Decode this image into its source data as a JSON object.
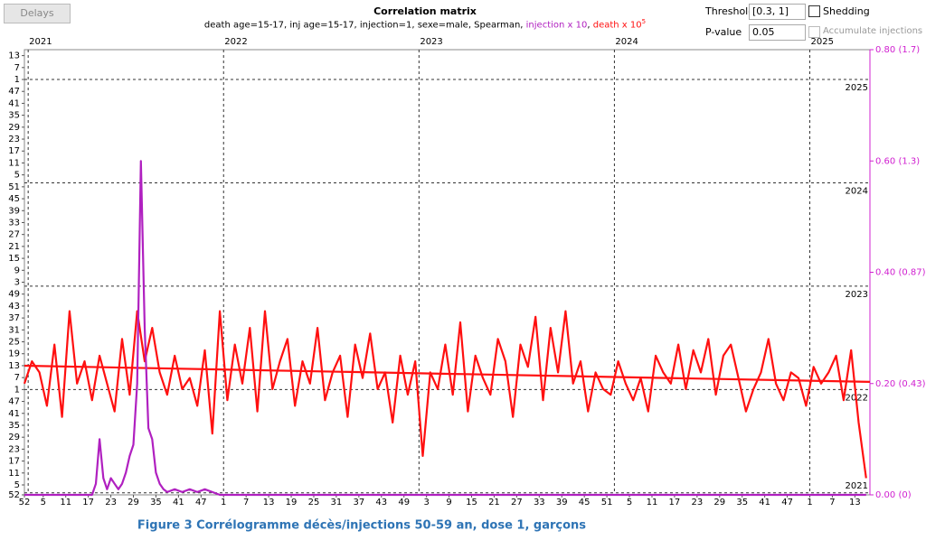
{
  "toolbar": {
    "delays": "Delays",
    "threshold_label": "Threshold",
    "threshold_value": "[0.3, 1]",
    "shedding": "Shedding",
    "pvalue_label": "P-value",
    "pvalue_value": "0.05",
    "accumulate": "Accumulate injections"
  },
  "caption": "Figure 3 Corrélogramme décès/injections 50-59 an, dose 1, garçons",
  "chart_data": {
    "type": "line",
    "title": "Correlation matrix",
    "subtitle": {
      "params": "death age=15-17, inj age=15-17, injection=1, sexe=male, Spearman, ",
      "injection": "injection x 10",
      "sep": ", ",
      "death": "death x 10",
      "death_exp": "5"
    },
    "xlim": [
      0,
      225
    ],
    "xticks": [
      {
        "value": 0,
        "label": "52"
      },
      5,
      11,
      17,
      23,
      29,
      35,
      41,
      47,
      {
        "value": 53,
        "label": "1"
      },
      {
        "value": 59,
        "label": "7"
      },
      {
        "value": 65,
        "label": "13"
      },
      {
        "value": 71,
        "label": "19"
      },
      {
        "value": 77,
        "label": "25"
      },
      {
        "value": 83,
        "label": "31"
      },
      {
        "value": 89,
        "label": "37"
      },
      {
        "value": 95,
        "label": "43"
      },
      {
        "value": 101,
        "label": "49"
      },
      {
        "value": 107,
        "label": "3"
      },
      {
        "value": 113,
        "label": "9"
      },
      {
        "value": 119,
        "label": "15"
      },
      {
        "value": 125,
        "label": "21"
      },
      {
        "value": 131,
        "label": "27"
      },
      {
        "value": 137,
        "label": "33"
      },
      {
        "value": 143,
        "label": "39"
      },
      {
        "value": 149,
        "label": "45"
      },
      {
        "value": 155,
        "label": "51"
      },
      {
        "value": 161,
        "label": "5"
      },
      {
        "value": 167,
        "label": "11"
      },
      {
        "value": 173,
        "label": "17"
      },
      {
        "value": 179,
        "label": "23"
      },
      {
        "value": 185,
        "label": "29"
      },
      {
        "value": 191,
        "label": "35"
      },
      {
        "value": 197,
        "label": "41"
      },
      {
        "value": 203,
        "label": "47"
      },
      {
        "value": 209,
        "label": "1"
      },
      {
        "value": 215,
        "label": "7"
      },
      {
        "value": 221,
        "label": "13"
      }
    ],
    "x2ticks": [
      {
        "value": 1,
        "label": "2021"
      },
      {
        "value": 53,
        "label": "2022"
      },
      {
        "value": 105,
        "label": "2023"
      },
      {
        "value": 157,
        "label": "2024"
      },
      {
        "value": 209,
        "label": "2025"
      }
    ],
    "ylim": [
      0,
      224
    ],
    "yticks": [
      {
        "value": 0,
        "label": "52"
      },
      5,
      11,
      17,
      23,
      29,
      35,
      41,
      47,
      {
        "value": 53,
        "label": "1"
      },
      {
        "value": 59,
        "label": "7"
      },
      {
        "value": 65,
        "label": "13"
      },
      {
        "value": 71,
        "label": "19"
      },
      {
        "value": 77,
        "label": "25"
      },
      {
        "value": 83,
        "label": "31"
      },
      {
        "value": 89,
        "label": "37"
      },
      {
        "value": 95,
        "label": "43"
      },
      {
        "value": 101,
        "label": "49"
      },
      {
        "value": 107,
        "label": "3"
      },
      {
        "value": 113,
        "label": "9"
      },
      {
        "value": 119,
        "label": "15"
      },
      {
        "value": 125,
        "label": "21"
      },
      {
        "value": 131,
        "label": "27"
      },
      {
        "value": 137,
        "label": "33"
      },
      {
        "value": 143,
        "label": "39"
      },
      {
        "value": 149,
        "label": "45"
      },
      {
        "value": 155,
        "label": "51"
      },
      {
        "value": 161,
        "label": "5"
      },
      {
        "value": 167,
        "label": "11"
      },
      {
        "value": 173,
        "label": "17"
      },
      {
        "value": 179,
        "label": "23"
      },
      {
        "value": 185,
        "label": "29"
      },
      {
        "value": 191,
        "label": "35"
      },
      {
        "value": 197,
        "label": "41"
      },
      {
        "value": 203,
        "label": "47"
      },
      {
        "value": 209,
        "label": "1"
      },
      {
        "value": 215,
        "label": "7"
      },
      {
        "value": 221,
        "label": "13"
      }
    ],
    "yyears": [
      {
        "value": 209,
        "label": "2025"
      },
      {
        "value": 157,
        "label": "2024"
      },
      {
        "value": 105,
        "label": "2023"
      },
      {
        "value": 53,
        "label": "2022"
      },
      {
        "value": 1,
        "label": "2021"
      }
    ],
    "y2lim": [
      0,
      0.8
    ],
    "y2ticks": [
      {
        "value": 0,
        "label": "0.00 (0)"
      },
      {
        "value": 0.2,
        "label": "0.20 (0.43)"
      },
      {
        "value": 0.4,
        "label": "0.40 (0.87)"
      },
      {
        "value": 0.6,
        "label": "0.60 (1.3)"
      },
      {
        "value": 0.8,
        "label": "0.80 (1.7)"
      }
    ],
    "series": [
      {
        "color": "#ff1010",
        "axis": "y2",
        "x": [
          0,
          2,
          4,
          6,
          8,
          10,
          12,
          14,
          16,
          18,
          20,
          22,
          24,
          26,
          28,
          30,
          32,
          34,
          36,
          38,
          40,
          42,
          44,
          46,
          48,
          50,
          52,
          54,
          56,
          58,
          60,
          62,
          64,
          66,
          68,
          70,
          72,
          74,
          76,
          78,
          80,
          82,
          84,
          86,
          88,
          90,
          92,
          94,
          96,
          98,
          100,
          102,
          104,
          106,
          108,
          110,
          112,
          114,
          116,
          118,
          120,
          122,
          124,
          126,
          128,
          130,
          132,
          134,
          136,
          138,
          140,
          142,
          144,
          146,
          148,
          150,
          152,
          154,
          156,
          158,
          160,
          162,
          164,
          166,
          168,
          170,
          172,
          174,
          176,
          178,
          180,
          182,
          184,
          186,
          188,
          190,
          192,
          194,
          196,
          198,
          200,
          202,
          204,
          206,
          208,
          210,
          212,
          214,
          216,
          218,
          220,
          222,
          224
        ],
        "values": [
          0.2,
          0.24,
          0.22,
          0.16,
          0.27,
          0.14,
          0.33,
          0.2,
          0.24,
          0.17,
          0.25,
          0.2,
          0.15,
          0.28,
          0.18,
          0.33,
          0.24,
          0.3,
          0.22,
          0.18,
          0.25,
          0.19,
          0.21,
          0.16,
          0.26,
          0.11,
          0.33,
          0.17,
          0.27,
          0.2,
          0.3,
          0.15,
          0.33,
          0.19,
          0.24,
          0.28,
          0.16,
          0.24,
          0.2,
          0.3,
          0.17,
          0.22,
          0.25,
          0.14,
          0.27,
          0.21,
          0.29,
          0.19,
          0.22,
          0.13,
          0.25,
          0.18,
          0.24,
          0.07,
          0.22,
          0.19,
          0.27,
          0.18,
          0.31,
          0.15,
          0.25,
          0.21,
          0.18,
          0.28,
          0.24,
          0.14,
          0.27,
          0.23,
          0.32,
          0.17,
          0.3,
          0.22,
          0.33,
          0.2,
          0.24,
          0.15,
          0.22,
          0.19,
          0.18,
          0.24,
          0.2,
          0.17,
          0.21,
          0.15,
          0.25,
          0.22,
          0.2,
          0.27,
          0.19,
          0.26,
          0.22,
          0.28,
          0.18,
          0.25,
          0.27,
          0.21,
          0.15,
          0.19,
          0.22,
          0.28,
          0.2,
          0.17,
          0.22,
          0.21,
          0.16,
          0.23,
          0.2,
          0.22,
          0.25,
          0.17,
          0.26,
          0.13,
          0.03
        ]
      },
      {
        "color": "#ff1010",
        "axis": "y2",
        "x": [
          0,
          225
        ],
        "values": [
          0.232,
          0.203
        ]
      },
      {
        "color": "#b020c0",
        "axis": "y2",
        "x": [
          0,
          10,
          18,
          19,
          20,
          21,
          22,
          23,
          24,
          25,
          26,
          27,
          28,
          29,
          30,
          31,
          32,
          33,
          34,
          35,
          36,
          37,
          38,
          40,
          42,
          44,
          46,
          48,
          50,
          52,
          60,
          224
        ],
        "values": [
          0,
          0,
          0,
          0.02,
          0.1,
          0.03,
          0.01,
          0.03,
          0.02,
          0.01,
          0.02,
          0.04,
          0.07,
          0.09,
          0.2,
          0.6,
          0.3,
          0.12,
          0.1,
          0.04,
          0.02,
          0.01,
          0.005,
          0.01,
          0.005,
          0.01,
          0.005,
          0.01,
          0.005,
          0,
          0,
          0
        ]
      }
    ]
  }
}
